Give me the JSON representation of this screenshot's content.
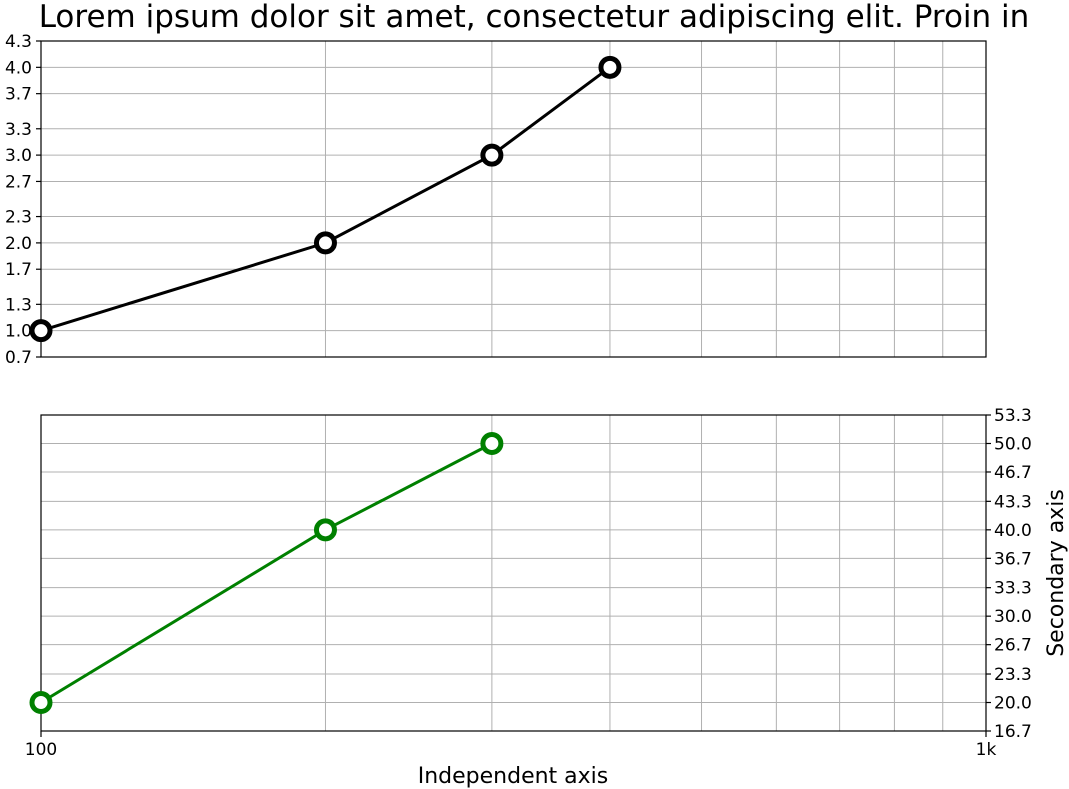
{
  "chart_data": {
    "title": "Lorem ipsum dolor sit amet, consectetur adipiscing elit. Proin in",
    "xlabel": "Independent axis",
    "x_scale": "log",
    "xlim": [
      100,
      1000
    ],
    "x_tick_values": [
      100,
      1000
    ],
    "x_tick_labels": [
      "100",
      "1k"
    ],
    "x_minor_ticks": [
      200,
      300,
      400,
      500,
      600,
      700,
      800,
      900
    ],
    "grid": true,
    "panels": [
      {
        "type": "line",
        "ylabel": "",
        "y_axis_side": "left",
        "ylim": [
          0.7,
          4.3
        ],
        "y_ticks": [
          "4.3",
          "4.0",
          "3.7",
          "3.3",
          "3.0",
          "2.7",
          "2.3",
          "2.0",
          "1.7",
          "1.3",
          "1.0",
          "0.7"
        ],
        "series": [
          {
            "color": "#000000",
            "x": [
              100,
              200,
              300,
              400
            ],
            "y": [
              1,
              2,
              3,
              4
            ]
          }
        ]
      },
      {
        "type": "line",
        "ylabel": "Secondary axis",
        "y_axis_side": "right",
        "ylim": [
          16.7,
          53.3
        ],
        "y_ticks": [
          "53.3",
          "50.0",
          "46.7",
          "43.3",
          "40.0",
          "36.7",
          "33.3",
          "30.0",
          "26.7",
          "23.3",
          "20.0",
          "16.7"
        ],
        "series": [
          {
            "color": "#008000",
            "x": [
              100,
              200,
              300
            ],
            "y": [
              20,
              40,
              50
            ]
          }
        ]
      }
    ]
  }
}
